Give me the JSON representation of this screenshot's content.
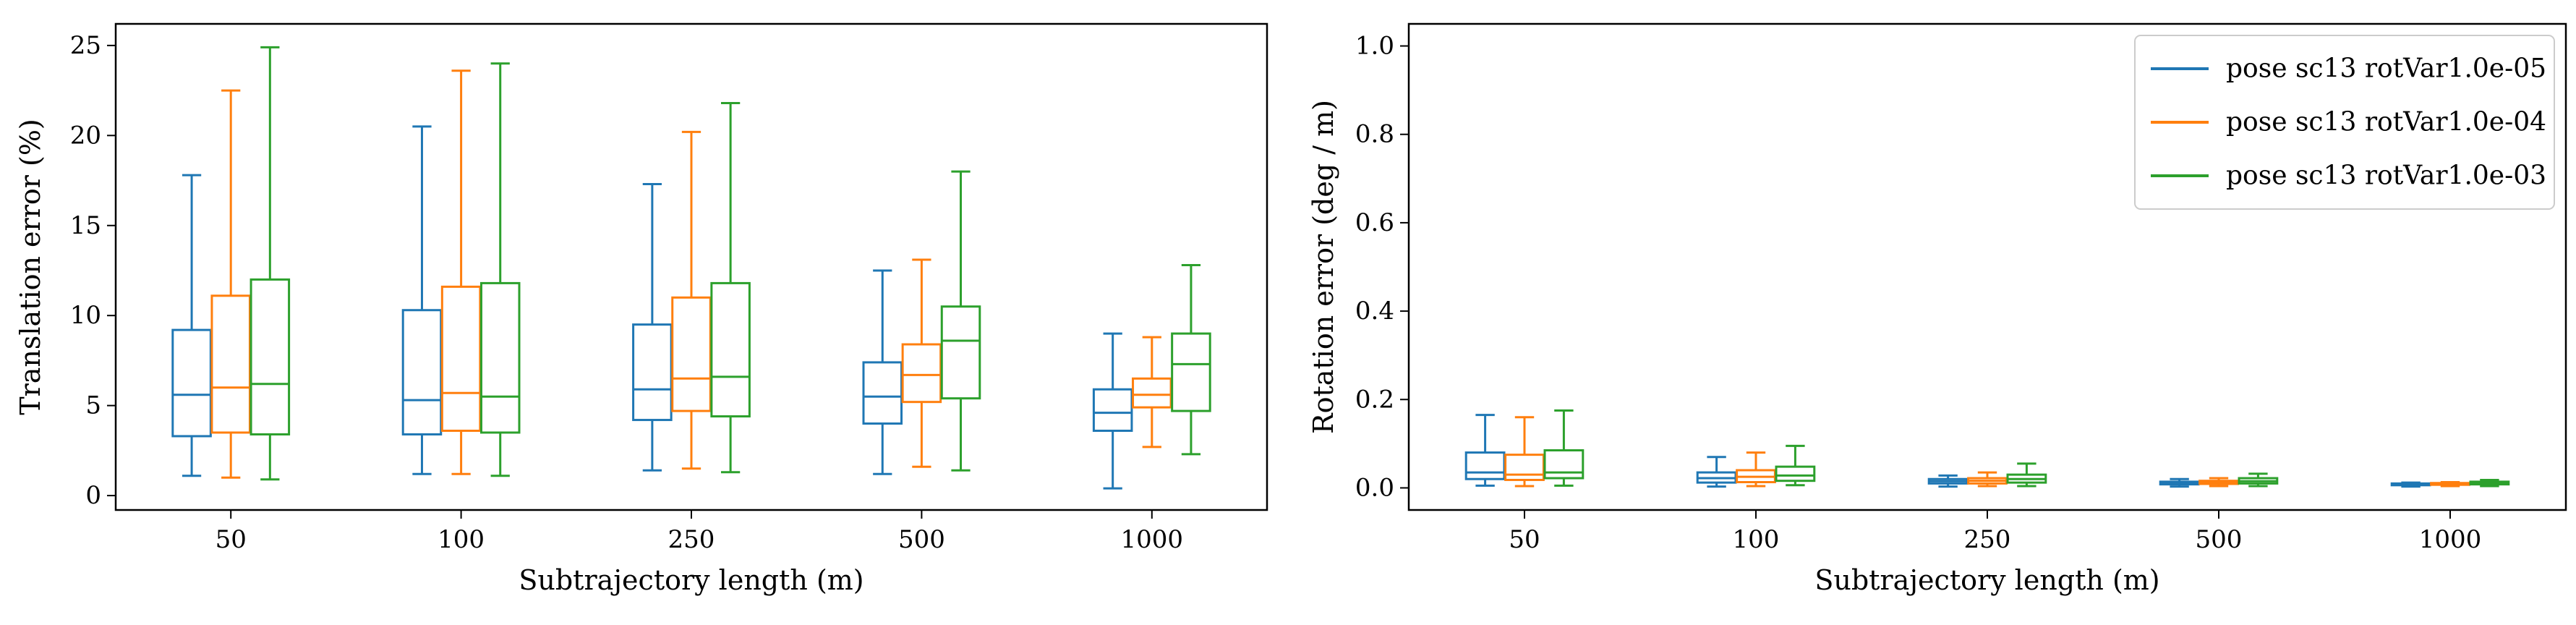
{
  "chart_data": [
    {
      "type": "boxplot",
      "xlabel": "Subtrajectory length (m)",
      "ylabel": "Translation error (%)",
      "categories": [
        "50",
        "100",
        "250",
        "500",
        "1000"
      ],
      "yticks": [
        "0",
        "5",
        "10",
        "15",
        "20",
        "25"
      ],
      "ylim": [
        -0.8,
        26.2
      ],
      "grid": false,
      "series": [
        {
          "color": "#1f77b4",
          "boxes": [
            {
              "min": 1.1,
              "q1": 3.3,
              "median": 5.6,
              "q3": 9.2,
              "max": 17.8
            },
            {
              "min": 1.2,
              "q1": 3.4,
              "median": 5.3,
              "q3": 10.3,
              "max": 20.5
            },
            {
              "min": 1.4,
              "q1": 4.2,
              "median": 5.9,
              "q3": 9.5,
              "max": 17.3
            },
            {
              "min": 1.2,
              "q1": 4.0,
              "median": 5.5,
              "q3": 7.4,
              "max": 12.5
            },
            {
              "min": 0.4,
              "q1": 3.6,
              "median": 4.6,
              "q3": 5.9,
              "max": 9.0
            }
          ]
        },
        {
          "color": "#ff7f0e",
          "boxes": [
            {
              "min": 1.0,
              "q1": 3.5,
              "median": 6.0,
              "q3": 11.1,
              "max": 22.5
            },
            {
              "min": 1.2,
              "q1": 3.6,
              "median": 5.7,
              "q3": 11.6,
              "max": 23.6
            },
            {
              "min": 1.5,
              "q1": 4.7,
              "median": 6.5,
              "q3": 11.0,
              "max": 20.2
            },
            {
              "min": 1.6,
              "q1": 5.2,
              "median": 6.7,
              "q3": 8.4,
              "max": 13.1
            },
            {
              "min": 2.7,
              "q1": 4.9,
              "median": 5.6,
              "q3": 6.5,
              "max": 8.8
            }
          ]
        },
        {
          "color": "#2ca02c",
          "boxes": [
            {
              "min": 0.9,
              "q1": 3.4,
              "median": 6.2,
              "q3": 12.0,
              "max": 24.9
            },
            {
              "min": 1.1,
              "q1": 3.5,
              "median": 5.5,
              "q3": 11.8,
              "max": 24.0
            },
            {
              "min": 1.3,
              "q1": 4.4,
              "median": 6.6,
              "q3": 11.8,
              "max": 21.8
            },
            {
              "min": 1.4,
              "q1": 5.4,
              "median": 8.6,
              "q3": 10.5,
              "max": 18.0
            },
            {
              "min": 2.3,
              "q1": 4.7,
              "median": 7.3,
              "q3": 9.0,
              "max": 12.8
            }
          ]
        }
      ]
    },
    {
      "type": "boxplot",
      "xlabel": "Subtrajectory length (m)",
      "ylabel": "Rotation error (deg / m)",
      "categories": [
        "50",
        "100",
        "250",
        "500",
        "1000"
      ],
      "yticks": [
        "0.0",
        "0.2",
        "0.4",
        "0.6",
        "0.8",
        "1.0"
      ],
      "ylim": [
        -0.05,
        1.05
      ],
      "grid": false,
      "legend_position": "top-right",
      "series": [
        {
          "name": "pose sc13 rotVar1.0e-05",
          "color": "#1f77b4",
          "boxes": [
            {
              "min": 0.005,
              "q1": 0.02,
              "median": 0.035,
              "q3": 0.08,
              "max": 0.165
            },
            {
              "min": 0.003,
              "q1": 0.012,
              "median": 0.022,
              "q3": 0.035,
              "max": 0.07
            },
            {
              "min": 0.003,
              "q1": 0.01,
              "median": 0.015,
              "q3": 0.02,
              "max": 0.028
            },
            {
              "min": 0.003,
              "q1": 0.008,
              "median": 0.011,
              "q3": 0.014,
              "max": 0.02
            },
            {
              "min": 0.003,
              "q1": 0.006,
              "median": 0.008,
              "q3": 0.01,
              "max": 0.012
            }
          ]
        },
        {
          "name": "pose sc13 rotVar1.0e-04",
          "color": "#ff7f0e",
          "boxes": [
            {
              "min": 0.004,
              "q1": 0.018,
              "median": 0.03,
              "q3": 0.075,
              "max": 0.16
            },
            {
              "min": 0.004,
              "q1": 0.013,
              "median": 0.025,
              "q3": 0.04,
              "max": 0.08
            },
            {
              "min": 0.004,
              "q1": 0.01,
              "median": 0.016,
              "q3": 0.022,
              "max": 0.035
            },
            {
              "min": 0.004,
              "q1": 0.009,
              "median": 0.012,
              "q3": 0.016,
              "max": 0.022
            },
            {
              "min": 0.004,
              "q1": 0.007,
              "median": 0.009,
              "q3": 0.011,
              "max": 0.013
            }
          ]
        },
        {
          "name": "pose sc13 rotVar1.0e-03",
          "color": "#2ca02c",
          "boxes": [
            {
              "min": 0.005,
              "q1": 0.022,
              "median": 0.035,
              "q3": 0.085,
              "max": 0.175
            },
            {
              "min": 0.006,
              "q1": 0.016,
              "median": 0.028,
              "q3": 0.048,
              "max": 0.095
            },
            {
              "min": 0.004,
              "q1": 0.012,
              "median": 0.02,
              "q3": 0.03,
              "max": 0.055
            },
            {
              "min": 0.004,
              "q1": 0.01,
              "median": 0.015,
              "q3": 0.022,
              "max": 0.032
            },
            {
              "min": 0.004,
              "q1": 0.008,
              "median": 0.011,
              "q3": 0.014,
              "max": 0.018
            }
          ]
        }
      ]
    }
  ]
}
